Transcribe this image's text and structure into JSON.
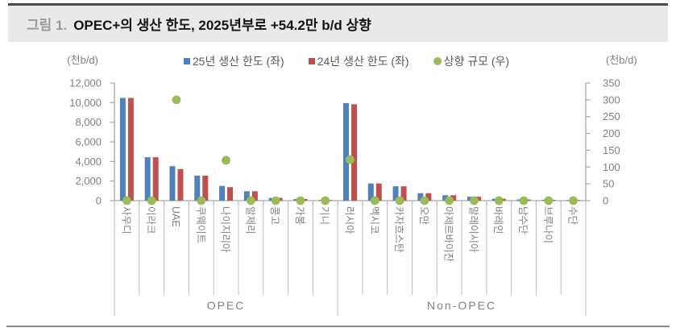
{
  "figure": {
    "label": "그림 1.",
    "title": "OPEC+의 생산 한도, 2025년부로 +54.2만 b/d 상향"
  },
  "chart_data": {
    "type": "bar",
    "title": "OPEC+의 생산 한도, 2025년부로 +54.2만 b/d 상향",
    "categories": [
      "사우디",
      "이라크",
      "UAE",
      "쿠웨이트",
      "나이지리아",
      "알제리",
      "콩고",
      "가봉",
      "기니",
      "러시아",
      "멕시코",
      "카자흐스탄",
      "오만",
      "아제르바이잔",
      "말레이시아",
      "바레인",
      "남수단",
      "브루나이",
      "수단"
    ],
    "groups": [
      {
        "label": "OPEC",
        "count": 9
      },
      {
        "label": "Non-OPEC",
        "count": 10
      }
    ],
    "series": [
      {
        "name": "25년 생산 한도 (좌)",
        "type": "bar",
        "axis": "left",
        "color": "#4F81BD",
        "values": [
          10478,
          4431,
          3519,
          2548,
          1500,
          959,
          277,
          169,
          70,
          9949,
          1753,
          1468,
          761,
          551,
          401,
          196,
          124,
          83,
          64
        ]
      },
      {
        "name": "24년 생산 한도 (좌)",
        "type": "bar",
        "axis": "left",
        "color": "#C0504D",
        "values": [
          10478,
          4431,
          3219,
          2548,
          1380,
          959,
          277,
          169,
          70,
          9828,
          1753,
          1468,
          761,
          551,
          401,
          196,
          124,
          83,
          64
        ]
      },
      {
        "name": "상향 규모 (우)",
        "type": "scatter",
        "axis": "right",
        "color": "#9BBB59",
        "values": [
          0,
          0,
          300,
          0,
          120,
          0,
          0,
          0,
          0,
          122,
          0,
          0,
          0,
          0,
          0,
          0,
          0,
          0,
          0
        ]
      }
    ],
    "left_axis": {
      "title": "(천b/d)",
      "min": 0,
      "max": 12000,
      "step": 2000
    },
    "right_axis": {
      "title": "(천b/d)",
      "min": 0,
      "max": 350,
      "step": 50
    },
    "grid": false,
    "legend_position": "top"
  }
}
